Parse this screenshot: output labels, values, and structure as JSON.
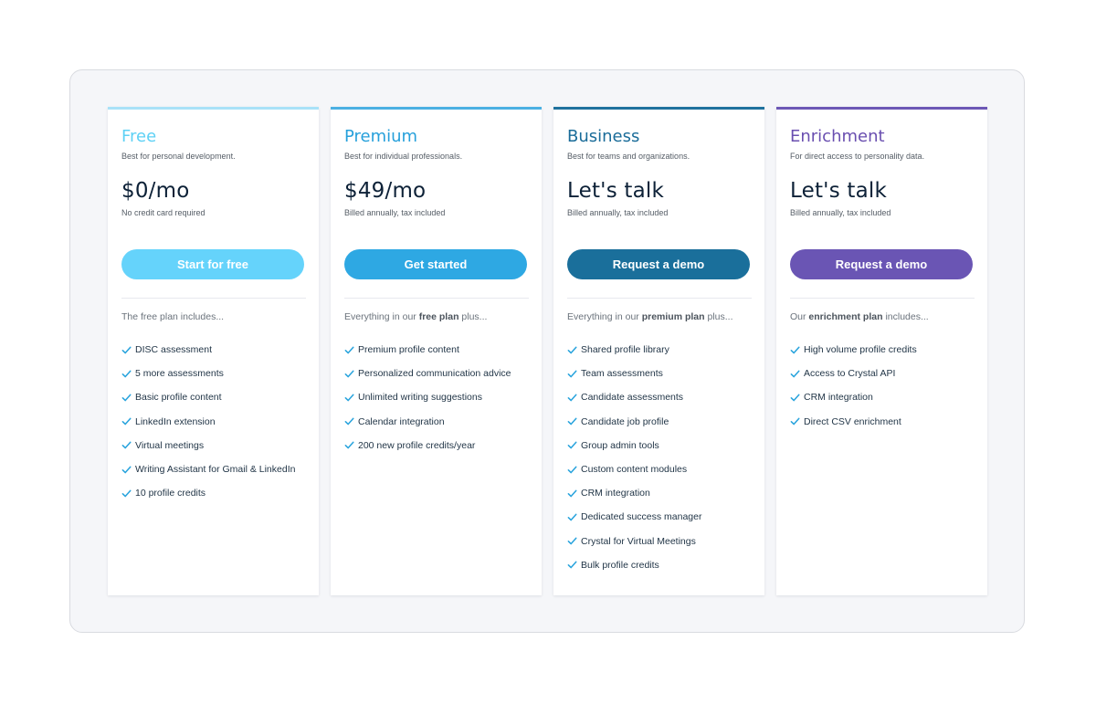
{
  "plans": [
    {
      "name": "Free",
      "tagline": "Best for personal development.",
      "price": "$0/mo",
      "note": "No credit card required",
      "cta": "Start for free",
      "includes_prefix": "The free plan includes...",
      "includes_bold": "",
      "includes_suffix": "",
      "accent": "#5ed1f5",
      "button_color": "#65d3fb",
      "top_border": "#a9e2f8",
      "features": [
        "DISC assessment",
        "5 more assessments",
        "Basic profile content",
        "LinkedIn extension",
        "Virtual meetings",
        "Writing Assistant for Gmail & LinkedIn",
        "10 profile credits"
      ]
    },
    {
      "name": "Premium",
      "tagline": "Best for individual professionals.",
      "price": "$49/mo",
      "note": "Billed annually, tax included",
      "cta": "Get started",
      "includes_prefix": "Everything in our ",
      "includes_bold": "free plan",
      "includes_suffix": " plus...",
      "accent": "#26a0db",
      "button_color": "#2ea8e3",
      "top_border": "#4bb0e3",
      "features": [
        "Premium profile content",
        "Personalized communication advice",
        "Unlimited writing suggestions",
        "Calendar integration",
        "200 new profile credits/year"
      ]
    },
    {
      "name": "Business",
      "tagline": "Best for teams and organizations.",
      "price": "Let's talk",
      "note": "Billed annually, tax included",
      "cta": "Request a demo",
      "includes_prefix": "Everything in our ",
      "includes_bold": "premium plan",
      "includes_suffix": " plus...",
      "accent": "#1a6c99",
      "button_color": "#1a6f9b",
      "top_border": "#1f729e",
      "features": [
        "Shared profile library",
        "Team assessments",
        "Candidate assessments",
        "Candidate job profile",
        "Group admin tools",
        "Custom content modules",
        "CRM integration",
        "Dedicated success manager",
        "Crystal for Virtual Meetings",
        "Bulk profile credits"
      ]
    },
    {
      "name": "Enrichment",
      "tagline": "For direct access to personality data.",
      "price": "Let's talk",
      "note": "Billed annually, tax included",
      "cta": "Request a demo",
      "includes_prefix": "Our ",
      "includes_bold": "enrichment plan",
      "includes_suffix": " includes...",
      "accent": "#6a4fb0",
      "button_color": "#6a55b4",
      "top_border": "#6d58b6",
      "features": [
        "High volume profile credits",
        "Access to Crystal API",
        "CRM integration",
        "Direct CSV enrichment"
      ]
    }
  ],
  "check_icon_color": "#2aa4dd",
  "check_icon": "checkmark-icon"
}
